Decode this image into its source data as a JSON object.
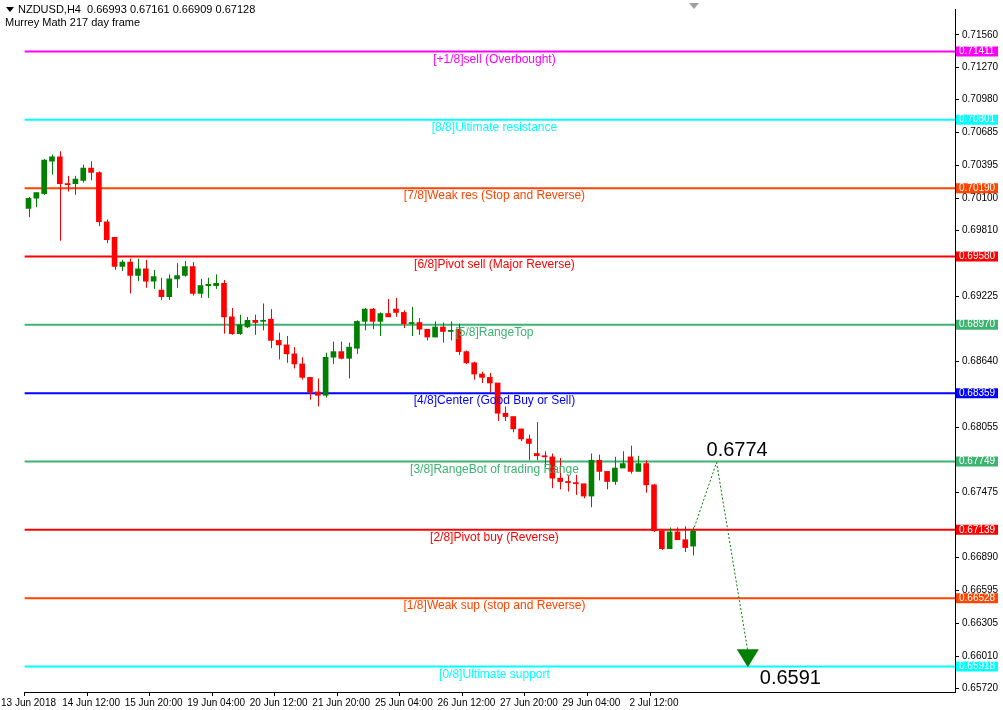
{
  "chart_data": {
    "type": "candlestick",
    "title": "NZDUSD,H4  0.66993 0.67161 0.66909 0.67128",
    "subtitle": "Murrey Math 217 day frame",
    "categories": [
      "13 Jun 2018",
      null,
      null,
      null,
      null,
      null,
      null,
      null,
      "14 Jun 12:00",
      null,
      null,
      null,
      null,
      null,
      null,
      null,
      "15 Jun 20:00",
      null,
      null,
      null,
      null,
      null,
      null,
      null,
      "19 Jun 04:00",
      null,
      null,
      null,
      null,
      null,
      null,
      null,
      "20 Jun 12:00",
      null,
      null,
      null,
      null,
      null,
      null,
      null,
      "21 Jun 20:00",
      null,
      null,
      null,
      null,
      null,
      null,
      null,
      "25 Jun 04:00",
      null,
      null,
      null,
      null,
      null,
      null,
      null,
      "26 Jun 12:00",
      null,
      null,
      null,
      null,
      null,
      null,
      null,
      "27 Jun 20:00",
      null,
      null,
      null,
      null,
      null,
      null,
      null,
      "29 Jun 04:00",
      null,
      null,
      null,
      null,
      null,
      null,
      null,
      "2 Jul 12:00",
      null,
      null,
      null,
      null,
      null,
      null,
      null,
      null,
      null,
      null,
      null,
      null,
      null,
      null,
      null,
      null,
      null,
      null,
      null,
      null,
      null,
      null,
      null,
      null,
      null,
      null,
      null,
      null,
      null,
      null,
      null,
      null,
      null,
      null,
      null,
      null,
      null,
      null
    ],
    "ohlc": [
      [
        0.7001,
        0.7011,
        0.6993,
        0.701
      ],
      [
        0.701,
        0.7015,
        0.7002,
        0.7015
      ],
      [
        0.7014,
        0.7045,
        0.7013,
        0.7044
      ],
      [
        0.7043,
        0.7049,
        0.7031,
        0.7047
      ],
      [
        0.7047,
        0.7052,
        0.6972,
        0.7023
      ],
      [
        0.7023,
        0.703,
        0.7016,
        0.7022
      ],
      [
        0.7023,
        0.703,
        0.7013,
        0.7027
      ],
      [
        0.7026,
        0.704,
        0.7024,
        0.7037
      ],
      [
        0.7037,
        0.7043,
        0.7026,
        0.7033
      ],
      [
        0.7033,
        0.7034,
        0.6985,
        0.6989
      ],
      [
        0.6989,
        0.6991,
        0.697,
        0.6973
      ],
      [
        0.6975,
        0.6975,
        0.6946,
        0.6949
      ],
      [
        0.6949,
        0.6955,
        0.6945,
        0.6953
      ],
      [
        0.6953,
        0.6956,
        0.6925,
        0.6941
      ],
      [
        0.6941,
        0.6956,
        0.6936,
        0.6947
      ],
      [
        0.6947,
        0.6955,
        0.693,
        0.6936
      ],
      [
        0.6936,
        0.6946,
        0.6929,
        0.694
      ],
      [
        0.6928,
        0.6939,
        0.6919,
        0.6922
      ],
      [
        0.6922,
        0.6942,
        0.6919,
        0.6938
      ],
      [
        0.6938,
        0.6952,
        0.693,
        0.6941
      ],
      [
        0.6941,
        0.6954,
        0.694,
        0.6949
      ],
      [
        0.6949,
        0.6953,
        0.6923,
        0.6925
      ],
      [
        0.6925,
        0.6938,
        0.6921,
        0.6932
      ],
      [
        0.6932,
        0.6939,
        0.6921,
        0.6933
      ],
      [
        0.6932,
        0.6942,
        0.6929,
        0.6934
      ],
      [
        0.6934,
        0.6937,
        0.6889,
        0.6904
      ],
      [
        0.6904,
        0.6912,
        0.6888,
        0.6889
      ],
      [
        0.6889,
        0.6906,
        0.6888,
        0.6897
      ],
      [
        0.6895,
        0.6904,
        0.6894,
        0.6901
      ],
      [
        0.6901,
        0.6906,
        0.6888,
        0.6899
      ],
      [
        0.69,
        0.6916,
        0.6892,
        0.6901
      ],
      [
        0.6902,
        0.6911,
        0.6876,
        0.6883
      ],
      [
        0.6883,
        0.689,
        0.6866,
        0.6879
      ],
      [
        0.6879,
        0.6887,
        0.6863,
        0.6871
      ],
      [
        0.6871,
        0.6877,
        0.6858,
        0.6862
      ],
      [
        0.6862,
        0.6868,
        0.6848,
        0.685
      ],
      [
        0.685,
        0.685,
        0.683,
        0.6837
      ],
      [
        0.6837,
        0.6849,
        0.6824,
        0.6834
      ],
      [
        0.6834,
        0.6872,
        0.6832,
        0.6868
      ],
      [
        0.6868,
        0.6882,
        0.6862,
        0.6873
      ],
      [
        0.6873,
        0.6882,
        0.6866,
        0.6867
      ],
      [
        0.6867,
        0.6881,
        0.6849,
        0.6877
      ],
      [
        0.6876,
        0.6901,
        0.6871,
        0.69
      ],
      [
        0.69,
        0.6912,
        0.6892,
        0.6911
      ],
      [
        0.6911,
        0.6912,
        0.6893,
        0.69
      ],
      [
        0.69,
        0.6908,
        0.6887,
        0.6907
      ],
      [
        0.6907,
        0.692,
        0.6904,
        0.6904
      ],
      [
        0.6911,
        0.6921,
        0.6904,
        0.6908
      ],
      [
        0.6908,
        0.691,
        0.6894,
        0.6898
      ],
      [
        0.6898,
        0.6913,
        0.6887,
        0.6899
      ],
      [
        0.6899,
        0.6903,
        0.6888,
        0.6893
      ],
      [
        0.6893,
        0.6893,
        0.6883,
        0.6886
      ],
      [
        0.6886,
        0.69,
        0.6886,
        0.6895
      ],
      [
        0.6895,
        0.6899,
        0.6881,
        0.6891
      ],
      [
        0.6891,
        0.69,
        0.6883,
        0.6892
      ],
      [
        0.6893,
        0.6898,
        0.687,
        0.6873
      ],
      [
        0.6873,
        0.6874,
        0.6862,
        0.6863
      ],
      [
        0.6863,
        0.6864,
        0.6848,
        0.6853
      ],
      [
        0.6853,
        0.6855,
        0.6845,
        0.685
      ],
      [
        0.685,
        0.6854,
        0.6837,
        0.6845
      ],
      [
        0.6845,
        0.6845,
        0.6811,
        0.6818
      ],
      [
        0.6818,
        0.6824,
        0.6811,
        0.6815
      ],
      [
        0.6815,
        0.6815,
        0.6801,
        0.6804
      ],
      [
        0.6804,
        0.6804,
        0.6793,
        0.6795
      ],
      [
        0.6795,
        0.6799,
        0.6776,
        0.6791
      ],
      [
        0.6782,
        0.681,
        0.6776,
        0.678
      ],
      [
        0.678,
        0.6784,
        0.677,
        0.6779
      ],
      [
        0.6779,
        0.6782,
        0.6751,
        0.676
      ],
      [
        0.676,
        0.6778,
        0.675,
        0.6757
      ],
      [
        0.6757,
        0.6763,
        0.6748,
        0.6756
      ],
      [
        0.6756,
        0.6763,
        0.6745,
        0.6755
      ],
      [
        0.6755,
        0.6755,
        0.6742,
        0.6744
      ],
      [
        0.6744,
        0.6782,
        0.6734,
        0.6776
      ],
      [
        0.6776,
        0.6781,
        0.6758,
        0.6766
      ],
      [
        0.6766,
        0.6766,
        0.675,
        0.6757
      ],
      [
        0.6757,
        0.6779,
        0.6754,
        0.6769
      ],
      [
        0.6769,
        0.6784,
        0.6769,
        0.6773
      ],
      [
        0.6779,
        0.6789,
        0.6764,
        0.6766
      ],
      [
        0.6766,
        0.678,
        0.6766,
        0.6773
      ],
      [
        0.6773,
        0.6776,
        0.6747,
        0.6754
      ],
      [
        0.6754,
        0.6755,
        0.6712,
        0.6713
      ],
      [
        0.6713,
        0.6713,
        0.6696,
        0.6697
      ],
      [
        0.6697,
        0.6716,
        0.6697,
        0.6712
      ],
      [
        0.6712,
        0.6716,
        0.6705,
        0.6705
      ],
      [
        0.6705,
        0.6717,
        0.6694,
        0.6698
      ],
      [
        0.66993,
        0.67161,
        0.66909,
        0.67128
      ],
      null,
      null,
      null,
      null,
      null,
      null,
      null,
      null,
      null,
      null,
      null,
      null,
      null,
      null,
      null,
      null,
      null,
      null,
      null,
      null,
      null,
      null,
      null,
      null,
      null,
      null,
      null,
      null,
      null,
      null,
      null,
      null,
      null
    ],
    "colors": [
      "#008000",
      "#008000",
      "#008000",
      "#008000",
      "#ff0000",
      "#ff0000",
      "#008000",
      "#008000",
      "#ff0000",
      "#ff0000",
      "#ff0000",
      "#ff0000",
      "#008000",
      "#ff0000",
      "#008000",
      "#ff0000",
      "#008000",
      "#ff0000",
      "#008000",
      "#008000",
      "#008000",
      "#ff0000",
      "#008000",
      "#008000",
      "#008000",
      "#ff0000",
      "#ff0000",
      "#008000",
      "#008000",
      "#ff0000",
      "#008000",
      "#ff0000",
      "#ff0000",
      "#ff0000",
      "#ff0000",
      "#ff0000",
      "#ff0000",
      "#ff0000",
      "#008000",
      "#008000",
      "#ff0000",
      "#008000",
      "#008000",
      "#008000",
      "#ff0000",
      "#008000",
      "#ff0000",
      "#ff0000",
      "#ff0000",
      "#008000",
      "#ff0000",
      "#ff0000",
      "#008000",
      "#ff0000",
      "#008000",
      "#ff0000",
      "#ff0000",
      "#ff0000",
      "#ff0000",
      "#ff0000",
      "#ff0000",
      "#ff0000",
      "#ff0000",
      "#ff0000",
      "#ff0000",
      "#ff0000",
      "#ff0000",
      "#ff0000",
      "#ff0000",
      "#ff0000",
      "#ff0000",
      "#ff0000",
      "#008000",
      "#ff0000",
      "#ff0000",
      "#008000",
      "#008000",
      "#ff0000",
      "#008000",
      "#ff0000",
      "#ff0000",
      "#ff0000",
      "#008000",
      "#ff0000",
      "#ff0000",
      "#008000",
      null,
      null,
      null,
      null,
      null,
      null,
      null,
      null,
      null,
      null,
      null,
      null,
      null,
      null,
      null,
      null,
      null,
      null,
      null,
      null,
      null,
      null,
      null,
      null,
      null,
      null,
      null,
      null,
      null,
      null,
      null,
      null,
      null
    ],
    "ylim": [
      0.6569,
      0.7179
    ],
    "yticks": [
      {
        "value": 0.7156,
        "label": "0.71560"
      },
      {
        "value": 0.71411,
        "label": "0.71411"
      },
      {
        "value": 0.7127,
        "label": "0.71270"
      },
      {
        "value": 0.7098,
        "label": "0.70980"
      },
      {
        "value": 0.70801,
        "label": "0.70801"
      },
      {
        "value": 0.70685,
        "label": "0.70685"
      },
      {
        "value": 0.70395,
        "label": "0.70395"
      },
      {
        "value": 0.7019,
        "label": "0.70190"
      },
      {
        "value": 0.701,
        "label": "0.70100"
      },
      {
        "value": 0.6981,
        "label": "0.69810"
      },
      {
        "value": 0.6958,
        "label": "0.69580"
      },
      {
        "value": 0.69225,
        "label": "0.69225"
      },
      {
        "value": 0.6897,
        "label": "0.68970"
      },
      {
        "value": 0.6864,
        "label": "0.68640"
      },
      {
        "value": 0.68359,
        "label": "0.68359"
      },
      {
        "value": 0.68055,
        "label": "0.68055"
      },
      {
        "value": 0.67749,
        "label": "0.67749"
      },
      {
        "value": 0.67475,
        "label": "0.67475"
      },
      {
        "value": 0.67139,
        "label": "0.67139"
      },
      {
        "value": 0.6689,
        "label": "0.66890"
      },
      {
        "value": 0.66595,
        "label": "0.66595"
      },
      {
        "value": 0.66528,
        "label": "0.66528"
      },
      {
        "value": 0.66305,
        "label": "0.66305"
      },
      {
        "value": 0.6601,
        "label": "0.66010"
      },
      {
        "value": 0.65918,
        "label": "0.65918"
      },
      {
        "value": 0.6572,
        "label": "0.65720"
      }
    ],
    "grid": false,
    "legend": false,
    "ref_lines": [
      {
        "axis": "y",
        "value": 0.71411,
        "label": "[+1/8]sell (Overbought)",
        "color": "#ff00ff"
      },
      {
        "axis": "y",
        "value": 0.70801,
        "label": "[8/8]Ultimate resistance",
        "color": "#00ffff"
      },
      {
        "axis": "y",
        "value": 0.7019,
        "label": "[7/8]Weak res (Stop and Reverse)",
        "color": "#ff4500"
      },
      {
        "axis": "y",
        "value": 0.6958,
        "label": "[6/8]Pivot sell (Major Reverse)",
        "color": "#ff0000"
      },
      {
        "axis": "y",
        "value": 0.6897,
        "label": "[5/8]RangeTop",
        "color": "#3cb371"
      },
      {
        "axis": "y",
        "value": 0.68359,
        "label": "[4/8]Center (Good Buy or Sell)",
        "color": "#0000ff"
      },
      {
        "axis": "y",
        "value": 0.67749,
        "label": "[3/8]RangeBot of trading Range",
        "color": "#3cb371"
      },
      {
        "axis": "y",
        "value": 0.67139,
        "label": "[2/8]Pivot buy (Reverse)",
        "color": "#ff0000"
      },
      {
        "axis": "y",
        "value": 0.66528,
        "label": "[1/8]Weak sup (stop and Reverse)",
        "color": "#ff4500"
      },
      {
        "axis": "y",
        "value": 0.65918,
        "label": "[0/8]Ultimate support",
        "color": "#00ffff"
      }
    ],
    "annotations": [
      {
        "text": "0.6774",
        "y": 0.6774
      },
      {
        "text": "0.6591",
        "y": 0.6591
      }
    ]
  }
}
